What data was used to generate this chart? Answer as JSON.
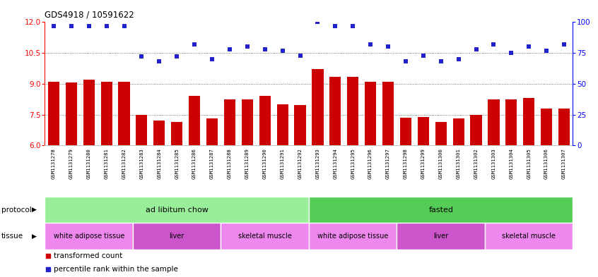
{
  "title": "GDS4918 / 10591622",
  "samples": [
    "GSM1131278",
    "GSM1131279",
    "GSM1131280",
    "GSM1131281",
    "GSM1131282",
    "GSM1131283",
    "GSM1131284",
    "GSM1131285",
    "GSM1131286",
    "GSM1131287",
    "GSM1131288",
    "GSM1131289",
    "GSM1131290",
    "GSM1131291",
    "GSM1131292",
    "GSM1131293",
    "GSM1131294",
    "GSM1131295",
    "GSM1131296",
    "GSM1131297",
    "GSM1131298",
    "GSM1131299",
    "GSM1131300",
    "GSM1131301",
    "GSM1131302",
    "GSM1131303",
    "GSM1131304",
    "GSM1131305",
    "GSM1131306",
    "GSM1131307"
  ],
  "red_values": [
    9.1,
    9.05,
    9.2,
    9.1,
    9.1,
    7.5,
    7.2,
    7.15,
    8.4,
    7.3,
    8.25,
    8.25,
    8.4,
    8.0,
    7.95,
    9.7,
    9.35,
    9.35,
    9.1,
    9.1,
    7.35,
    7.4,
    7.15,
    7.3,
    7.5,
    8.25,
    8.25,
    8.3,
    7.8,
    7.8
  ],
  "blue_values": [
    97,
    97,
    97,
    97,
    97,
    72,
    68,
    72,
    82,
    70,
    78,
    80,
    78,
    77,
    73,
    100,
    97,
    97,
    82,
    80,
    68,
    73,
    68,
    70,
    78,
    82,
    75,
    80,
    77,
    82
  ],
  "ylim_left": [
    6,
    12
  ],
  "ylim_right": [
    0,
    100
  ],
  "yticks_left": [
    6,
    7.5,
    9,
    10.5,
    12
  ],
  "yticks_right": [
    0,
    25,
    50,
    75,
    100
  ],
  "grid_values": [
    7.5,
    9.0,
    10.5
  ],
  "bar_color": "#cc0000",
  "dot_color": "#2222cc",
  "protocol_groups": [
    {
      "label": "ad libitum chow",
      "start": 0,
      "end": 14,
      "color": "#99ee99"
    },
    {
      "label": "fasted",
      "start": 15,
      "end": 29,
      "color": "#55cc55"
    }
  ],
  "tissue_groups": [
    {
      "label": "white adipose tissue",
      "start": 0,
      "end": 4,
      "color": "#ee88ee"
    },
    {
      "label": "liver",
      "start": 5,
      "end": 9,
      "color": "#cc55cc"
    },
    {
      "label": "skeletal muscle",
      "start": 10,
      "end": 14,
      "color": "#ee88ee"
    },
    {
      "label": "white adipose tissue",
      "start": 15,
      "end": 19,
      "color": "#ee88ee"
    },
    {
      "label": "liver",
      "start": 20,
      "end": 24,
      "color": "#cc55cc"
    },
    {
      "label": "skeletal muscle",
      "start": 25,
      "end": 29,
      "color": "#ee88ee"
    }
  ],
  "legend_red": "transformed count",
  "legend_blue": "percentile rank within the sample",
  "protocol_label": "protocol",
  "tissue_label": "tissue",
  "xtick_bg": "#dddddd",
  "chart_bg": "#ffffff"
}
